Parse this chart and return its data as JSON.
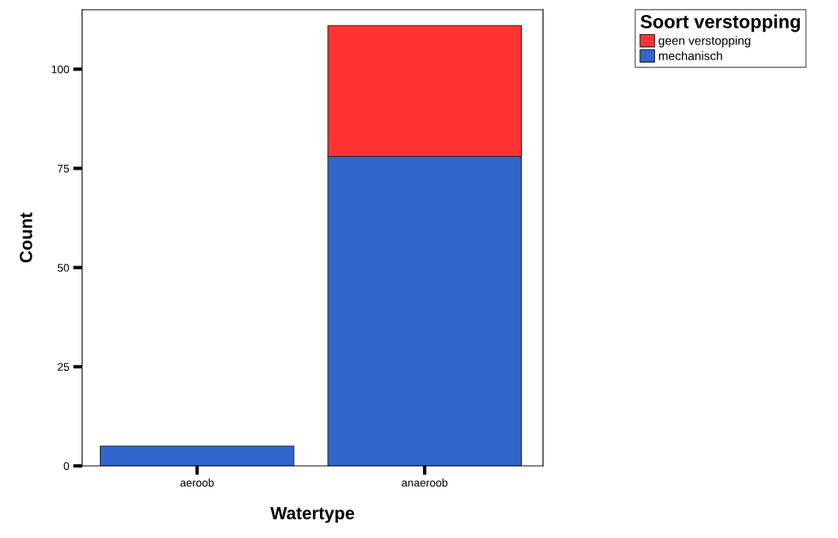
{
  "chart_data": {
    "type": "bar",
    "stacked": true,
    "xlabel": "Watertype",
    "ylabel": "Count",
    "legend_title": "Soort verstopping",
    "categories": [
      "aeroob",
      "anaeroob"
    ],
    "series": [
      {
        "name": "mechanisch",
        "color": "#3366cc",
        "values": [
          5,
          78
        ]
      },
      {
        "name": "geen verstopping",
        "color": "#ff3333",
        "values": [
          0,
          33
        ]
      }
    ],
    "ylim": [
      0,
      115
    ],
    "yticks": [
      0,
      25,
      50,
      75,
      100
    ],
    "grid": false,
    "legend": "top right"
  }
}
